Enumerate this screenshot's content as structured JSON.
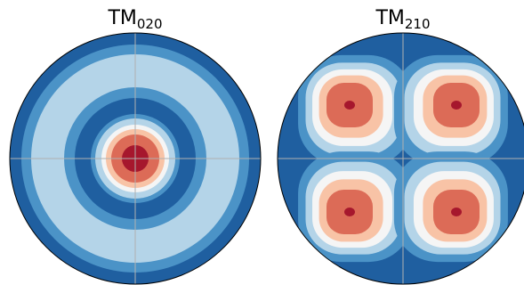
{
  "chart_data": [
    {
      "type": "contour",
      "mode": "radial",
      "title": "TM",
      "title_subscript": "020",
      "grid": true,
      "colors": [
        "#1f5fa0",
        "#4b93c7",
        "#b4d4e8",
        "#f5f5f5",
        "#f8c3a6",
        "#dc6b57",
        "#a6172d"
      ]
    },
    {
      "type": "contour",
      "mode": "quadrant",
      "title": "TM",
      "title_subscript": "210",
      "grid": true,
      "colors": [
        "#1f5fa0",
        "#4b93c7",
        "#b4d4e8",
        "#f5f5f5",
        "#f8c3a6",
        "#dc6b57",
        "#a6172d"
      ]
    }
  ]
}
